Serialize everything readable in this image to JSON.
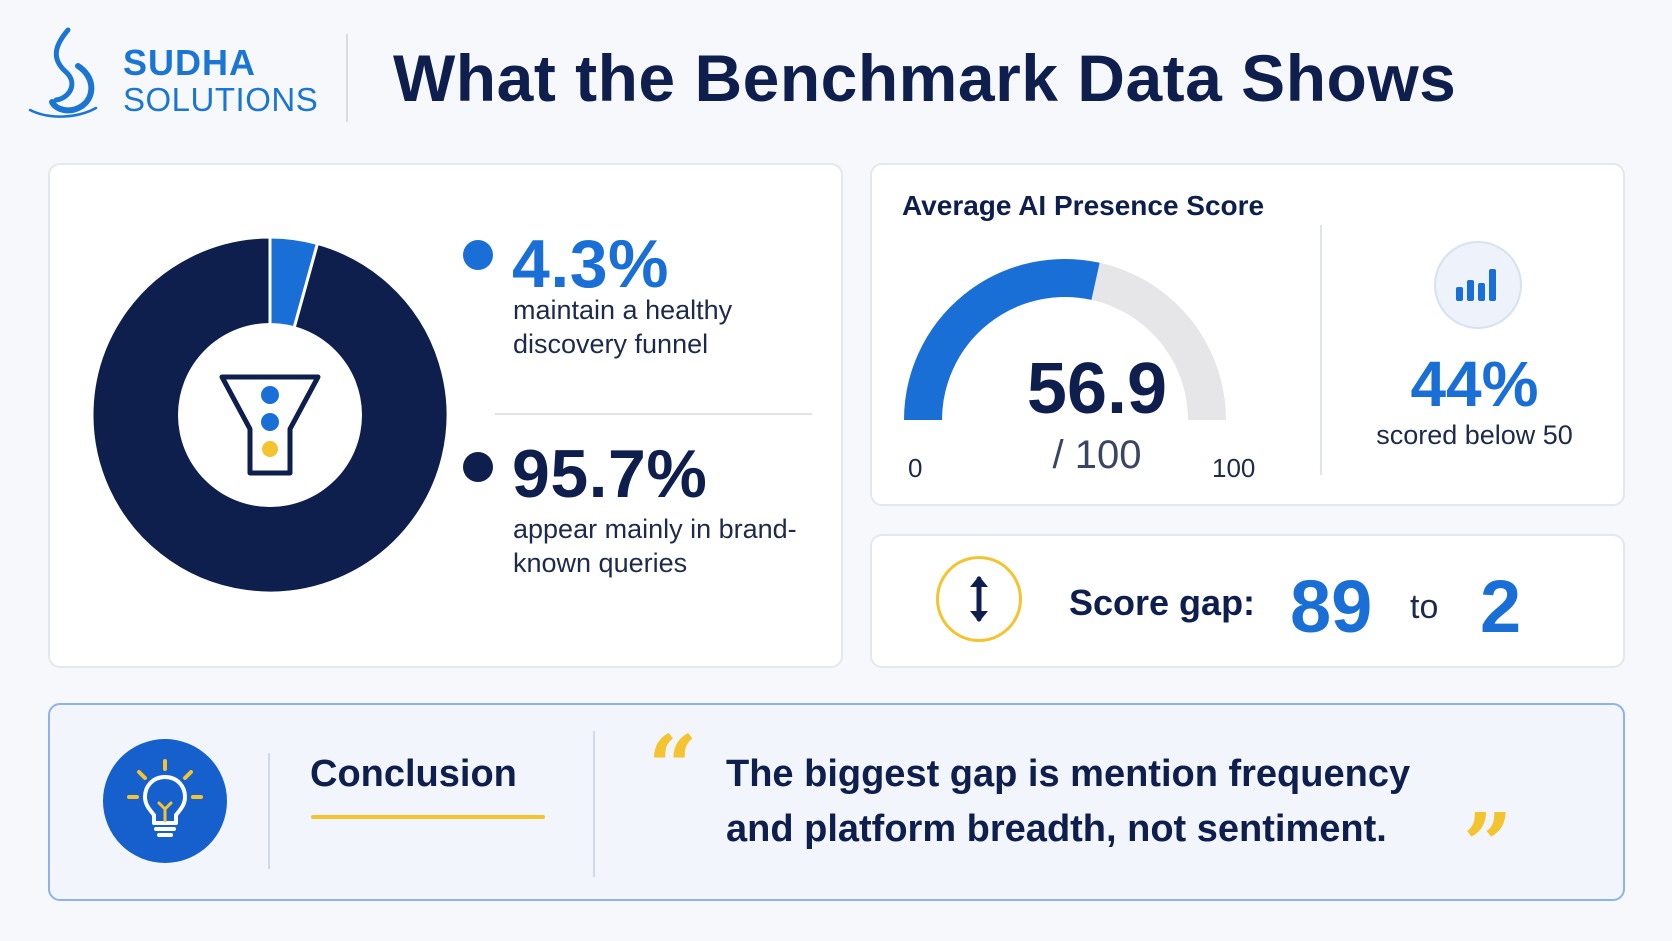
{
  "brand": {
    "name_line1": "SUDHA",
    "name_line2": "SOLUTIONS"
  },
  "page_title": "What the Benchmark Data Shows",
  "colors": {
    "navy": "#0e1f4d",
    "blue": "#1a6fd6",
    "yellow": "#f4c430",
    "gauge_track": "#e6e6e8"
  },
  "funnel_stats": {
    "healthy": {
      "value": "4.3%",
      "desc": "maintain a healthy discovery funnel"
    },
    "brand": {
      "value": "95.7%",
      "desc": "appear mainly in brand-known queries"
    }
  },
  "presence": {
    "title": "Average AI Presence Score",
    "score": "56.9",
    "of": "/ 100",
    "scale_min": "0",
    "scale_max": "100",
    "below_pct": "44%",
    "below_desc": "scored below 50",
    "icon": "bar-chart-icon"
  },
  "gap": {
    "label": "Score gap:",
    "high": "89",
    "to": "to",
    "low": "2",
    "icon": "vertical-arrows-icon"
  },
  "conclusion": {
    "label": "Conclusion",
    "quote_open": "“",
    "quote_close": "”",
    "quote": "The biggest gap is mention frequency and platform breadth, not sentiment.",
    "icon": "lightbulb-icon"
  },
  "chart_data": [
    {
      "type": "pie",
      "categories": [
        "maintain a healthy discovery funnel",
        "appear mainly in brand-known queries"
      ],
      "values": [
        4.3,
        95.7
      ],
      "colors": [
        "#1a6fd6",
        "#0e1f4d"
      ],
      "title": "",
      "center_icon": "funnel-icon"
    },
    {
      "type": "gauge",
      "title": "Average AI Presence Score",
      "value": 56.9,
      "ylim": [
        0,
        100
      ]
    }
  ]
}
